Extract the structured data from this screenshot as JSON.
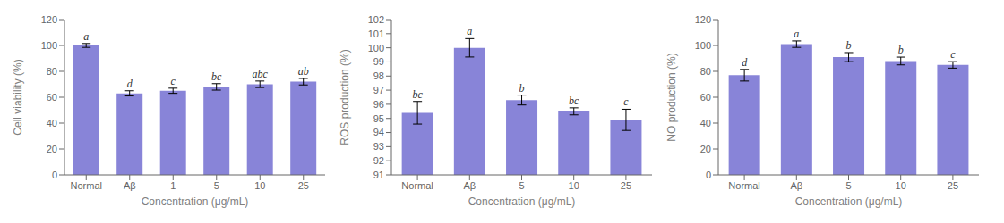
{
  "chart_data": [
    {
      "type": "bar",
      "categories": [
        "Normal",
        "Aβ",
        "1",
        "5",
        "10",
        "25"
      ],
      "values": [
        100,
        63,
        65,
        68,
        70,
        72
      ],
      "errors": [
        1.5,
        2.0,
        2.0,
        2.5,
        2.5,
        2.5
      ],
      "annotations": [
        "a",
        "d",
        "c",
        "bc",
        "abc",
        "ab"
      ],
      "ylabel": "Cell viability (%)",
      "xlabel": "Concentration (μg/mL)",
      "ylim": [
        0,
        120
      ],
      "yticks": [
        0,
        20,
        40,
        60,
        80,
        100,
        120
      ],
      "color": "#8884d8"
    },
    {
      "type": "bar",
      "categories": [
        "Normal",
        "Aβ",
        "5",
        "10",
        "25"
      ],
      "values": [
        95.4,
        100.0,
        96.3,
        95.5,
        94.9
      ],
      "errors": [
        0.8,
        0.65,
        0.35,
        0.25,
        0.75
      ],
      "annotations": [
        "bc",
        "a",
        "b",
        "bc",
        "c"
      ],
      "ylabel": "ROS production (%)",
      "xlabel": "Concentration (μg/mL)",
      "ylim": [
        91,
        102
      ],
      "yticks": [
        91,
        92,
        93,
        94,
        95,
        96,
        97,
        98,
        99,
        100,
        101,
        102
      ],
      "color": "#8884d8"
    },
    {
      "type": "bar",
      "categories": [
        "Normal",
        "Aβ",
        "5",
        "10",
        "25"
      ],
      "values": [
        77,
        101,
        91,
        88,
        85
      ],
      "errors": [
        4.5,
        2.5,
        3.5,
        3.0,
        2.5
      ],
      "annotations": [
        "d",
        "a",
        "b",
        "b",
        "c"
      ],
      "ylabel": "NO production (%)",
      "xlabel": "Concentration (μg/mL)",
      "ylim": [
        0,
        120
      ],
      "yticks": [
        0,
        20,
        40,
        60,
        80,
        100,
        120
      ],
      "color": "#8884d8"
    }
  ]
}
